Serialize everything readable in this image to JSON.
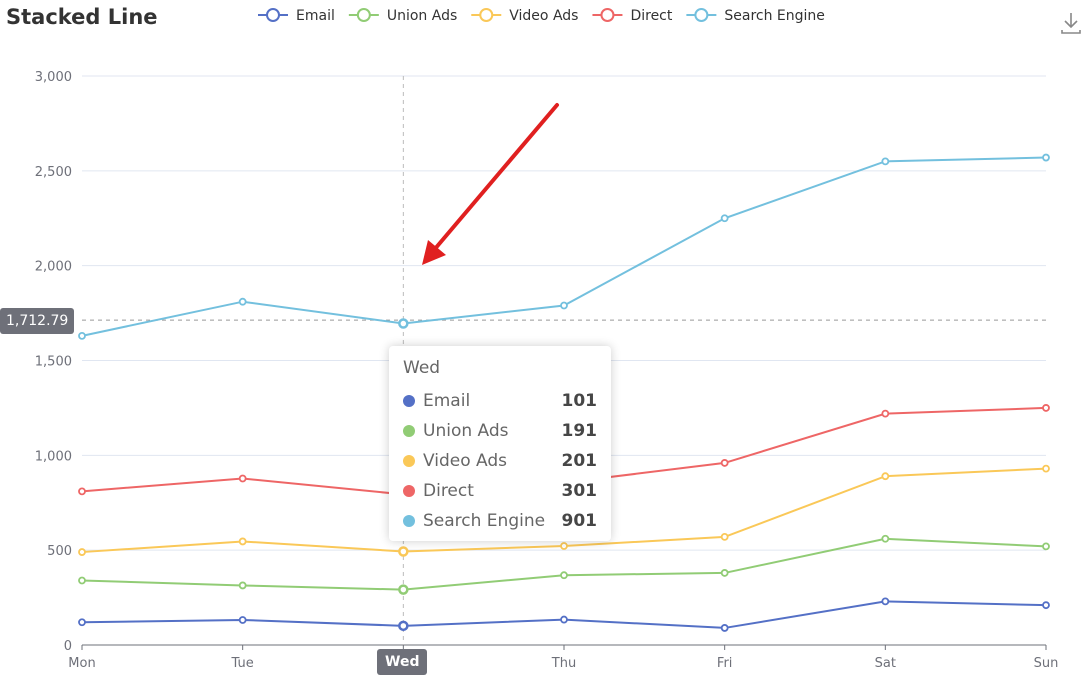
{
  "chart_data": {
    "type": "line",
    "title": "Stacked Line",
    "categories": [
      "Mon",
      "Tue",
      "Wed",
      "Thu",
      "Fri",
      "Sat",
      "Sun"
    ],
    "series": [
      {
        "name": "Email",
        "color": "#5470c6",
        "values": [
          120,
          132,
          101,
          134,
          90,
          230,
          210
        ]
      },
      {
        "name": "Union Ads",
        "color": "#91cc75",
        "values": [
          220,
          182,
          191,
          234,
          290,
          330,
          310
        ]
      },
      {
        "name": "Video Ads",
        "color": "#fac858",
        "values": [
          150,
          232,
          201,
          154,
          190,
          330,
          410
        ]
      },
      {
        "name": "Direct",
        "color": "#ee6666",
        "values": [
          320,
          332,
          301,
          334,
          390,
          330,
          320
        ]
      },
      {
        "name": "Search Engine",
        "color": "#73c0de",
        "values": [
          820,
          932,
          901,
          934,
          1290,
          1330,
          1320
        ]
      }
    ],
    "stacked": true,
    "ylim": [
      0,
      3000
    ],
    "yticks": [
      "0",
      "500",
      "1,000",
      "1,500",
      "2,000",
      "2,500",
      "3,000"
    ],
    "legend_position": "top",
    "grid": true
  },
  "tooltip": {
    "category": "Wed",
    "rows": [
      {
        "name": "Email",
        "value": "101",
        "color": "#5470c6"
      },
      {
        "name": "Union Ads",
        "value": "191",
        "color": "#91cc75"
      },
      {
        "name": "Video Ads",
        "value": "201",
        "color": "#fac858"
      },
      {
        "name": "Direct",
        "value": "301",
        "color": "#ee6666"
      },
      {
        "name": "Search Engine",
        "value": "901",
        "color": "#73c0de"
      }
    ]
  },
  "axis_pointer": {
    "y_value": 1712.79,
    "y_label": "1,712.79",
    "x_label": "Wed"
  },
  "toolbox": {
    "download_icon": "download-icon"
  },
  "annotation": {
    "arrow_color": "#e02020"
  }
}
